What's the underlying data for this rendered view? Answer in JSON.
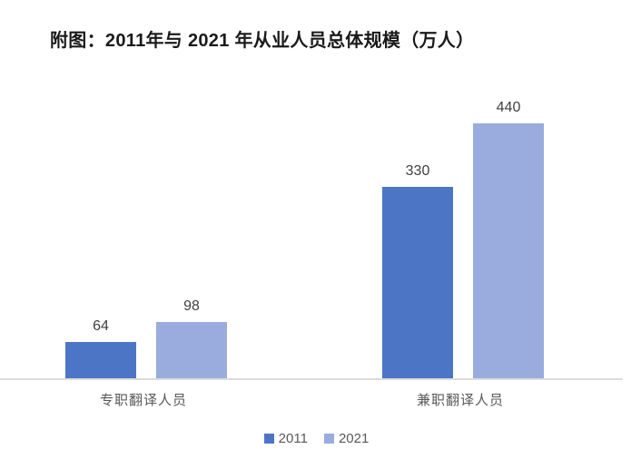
{
  "chart_data": {
    "type": "bar",
    "title": "附图：2011年与 2021 年从业人员总体规模（万人）",
    "categories": [
      "专职翻译人员",
      "兼职翻译人员"
    ],
    "series": [
      {
        "name": "2011",
        "color": "#4c76c5",
        "values": [
          64,
          330
        ]
      },
      {
        "name": "2021",
        "color": "#9aabde",
        "values": [
          98,
          440
        ]
      }
    ],
    "ylim": [
      0,
      460
    ],
    "xlabel": "",
    "ylabel": "",
    "grid": false,
    "value_labels": [
      64,
      98,
      330,
      440
    ],
    "legend_position": "bottom",
    "axis_line_color": "#dcdcdc",
    "value_label_color": "#3f3f3f",
    "category_label_color": "#595959",
    "legend_text_color": "#595959"
  }
}
